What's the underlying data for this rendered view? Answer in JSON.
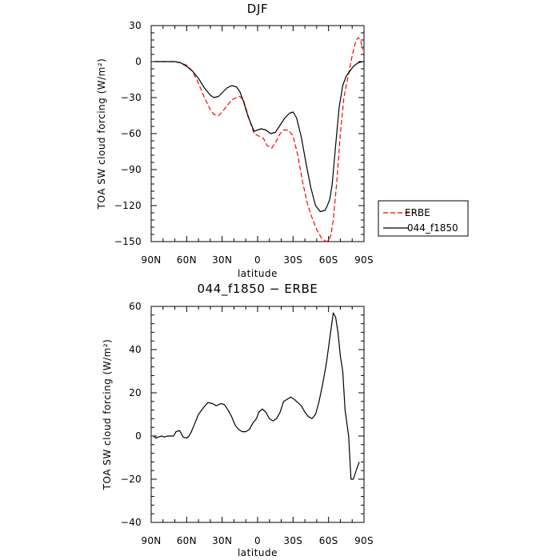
{
  "chart_data": [
    {
      "type": "line",
      "title": "DJF",
      "xlabel": "latitude",
      "ylabel": "TOA SW cloud forcing (W/m²)",
      "xlim": [
        90,
        -90
      ],
      "ylim": [
        -150,
        30
      ],
      "xticks": [
        90,
        60,
        30,
        0,
        -30,
        -60,
        -90
      ],
      "xticklabels": [
        "90N",
        "60N",
        "30N",
        "0",
        "30S",
        "60S",
        "90S"
      ],
      "yticks": [
        30,
        0,
        -30,
        -60,
        -90,
        -120,
        -150
      ],
      "yticklabels": [
        "30",
        "0",
        "−30",
        "−60",
        "−90",
        "−120",
        "−150"
      ],
      "legend": {
        "position": "right, outside plot"
      },
      "series": [
        {
          "name": "ERBE",
          "color": "#ff0000",
          "dash": "dashed",
          "x": [
            87,
            80,
            75,
            70,
            65,
            60,
            55,
            50,
            45,
            40,
            37,
            33,
            30,
            26,
            22,
            18,
            15,
            12,
            8,
            3,
            -1,
            -5,
            -8,
            -12,
            -16,
            -19,
            -22,
            -26,
            -30,
            -34,
            -38,
            -42,
            -46,
            -50,
            -54,
            -58,
            -60,
            -62,
            -64,
            -67,
            -70,
            -73,
            -77,
            -80,
            -83,
            -85,
            -87,
            -89
          ],
          "y": [
            0,
            0,
            0,
            0,
            -1,
            -3,
            -8,
            -18,
            -30,
            -40,
            -44,
            -45,
            -42,
            -37,
            -32,
            -30,
            -29,
            -32,
            -45,
            -60,
            -62,
            -64,
            -70,
            -72,
            -66,
            -60,
            -57,
            -57,
            -62,
            -78,
            -100,
            -118,
            -130,
            -140,
            -147,
            -150,
            -149,
            -145,
            -132,
            -100,
            -60,
            -30,
            -10,
            5,
            17,
            20,
            18,
            10
          ]
        },
        {
          "name": "044_f1850",
          "color": "#000000",
          "dash": "solid",
          "x": [
            87,
            80,
            75,
            70,
            65,
            60,
            55,
            50,
            45,
            40,
            37,
            33,
            30,
            26,
            22,
            18,
            15,
            12,
            8,
            3,
            0,
            -3,
            -7,
            -11,
            -15,
            -19,
            -23,
            -27,
            -30,
            -33,
            -37,
            -41,
            -45,
            -49,
            -53,
            -57,
            -59,
            -61,
            -63,
            -66,
            -69,
            -72,
            -75,
            -78,
            -81,
            -85,
            -89
          ],
          "y": [
            0,
            0,
            0,
            0,
            -1,
            -4,
            -8,
            -14,
            -22,
            -28,
            -30,
            -29,
            -26,
            -22,
            -20,
            -21,
            -25,
            -33,
            -46,
            -58,
            -57,
            -56,
            -57,
            -60,
            -59,
            -53,
            -47,
            -43,
            -42,
            -47,
            -63,
            -85,
            -105,
            -120,
            -125,
            -124,
            -120,
            -115,
            -103,
            -70,
            -38,
            -20,
            -12,
            -8,
            -4,
            -1,
            0
          ]
        }
      ]
    },
    {
      "type": "line",
      "title": "044_f1850 − ERBE",
      "xlabel": "latitude",
      "ylabel": "TOA SW cloud forcing (W/m²)",
      "xlim": [
        90,
        -90
      ],
      "ylim": [
        -40,
        60
      ],
      "xticks": [
        90,
        60,
        30,
        0,
        -30,
        -60,
        -90
      ],
      "xticklabels": [
        "90N",
        "60N",
        "30N",
        "0",
        "30S",
        "60S",
        "90S"
      ],
      "yticks": [
        60,
        40,
        20,
        0,
        -20,
        -40
      ],
      "yticklabels": [
        "60",
        "40",
        "20",
        "0",
        "−20",
        "−40"
      ],
      "series": [
        {
          "color": "#000000",
          "dash": "solid",
          "x": [
            88,
            86,
            84,
            81,
            79,
            76,
            74,
            71,
            69,
            66,
            63,
            60,
            58,
            56,
            53,
            50,
            46,
            42,
            38,
            35,
            31,
            28,
            25,
            22,
            19,
            16,
            13,
            10,
            7,
            4,
            1,
            -1,
            -4,
            -7,
            -10,
            -13,
            -16,
            -19,
            -22,
            -25,
            -28,
            -31,
            -34,
            -37,
            -40,
            -43,
            -46,
            -49,
            -52,
            -55,
            -58,
            -61,
            -64,
            -66,
            -68,
            -70,
            -72,
            -74,
            -77,
            -79,
            -81,
            -84,
            -86
          ],
          "y": [
            0,
            -1,
            -0.5,
            0,
            -0.5,
            0,
            0,
            0,
            2,
            2.5,
            -0.5,
            -1,
            0,
            2,
            6,
            10,
            13,
            15.5,
            15,
            14,
            15,
            14.5,
            12,
            9,
            5,
            3,
            2,
            2,
            3,
            6,
            8,
            11,
            12.5,
            11,
            8,
            7,
            8,
            11,
            16,
            17,
            18,
            17,
            15.5,
            14,
            11,
            9,
            8,
            10,
            16,
            24,
            33,
            45,
            57,
            55,
            48,
            37,
            30,
            12,
            0,
            -20,
            -20,
            -15,
            -12
          ]
        }
      ]
    }
  ],
  "legend_labels": [
    "ERBE",
    "044_f1850"
  ]
}
